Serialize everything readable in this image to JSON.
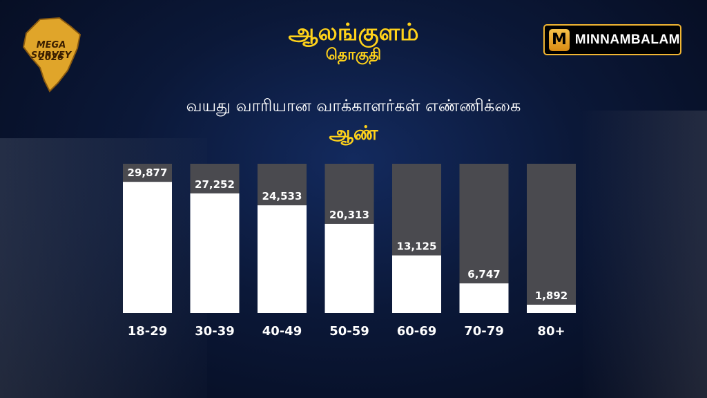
{
  "header": {
    "title": "ஆலங்குளம்",
    "subtitle": "தொகுதி"
  },
  "logo": {
    "line1": "MEGA SURVEY",
    "line2": "2026",
    "color": "#e0a52a"
  },
  "brand": {
    "icon_letter": "M",
    "name": "MINNAMBALAM",
    "accent": "#f2b632"
  },
  "chart_data": {
    "type": "bar",
    "title": "வயது வாரியான வாக்காளர்கள் எண்ணிக்கை",
    "subtitle": "ஆண்",
    "categories": [
      "18-29",
      "30-39",
      "40-49",
      "50-59",
      "60-69",
      "70-79",
      "80+"
    ],
    "values": [
      29877,
      27252,
      24533,
      20313,
      13125,
      6747,
      1892
    ],
    "value_labels": [
      "29,877",
      "27,252",
      "24,533",
      "20,313",
      "13,125",
      "6,747",
      "1,892"
    ],
    "ylim": [
      0,
      34000
    ],
    "grid": false,
    "legend": "none",
    "bar_color": "#ffffff",
    "track_color": "#4a4a4f"
  }
}
